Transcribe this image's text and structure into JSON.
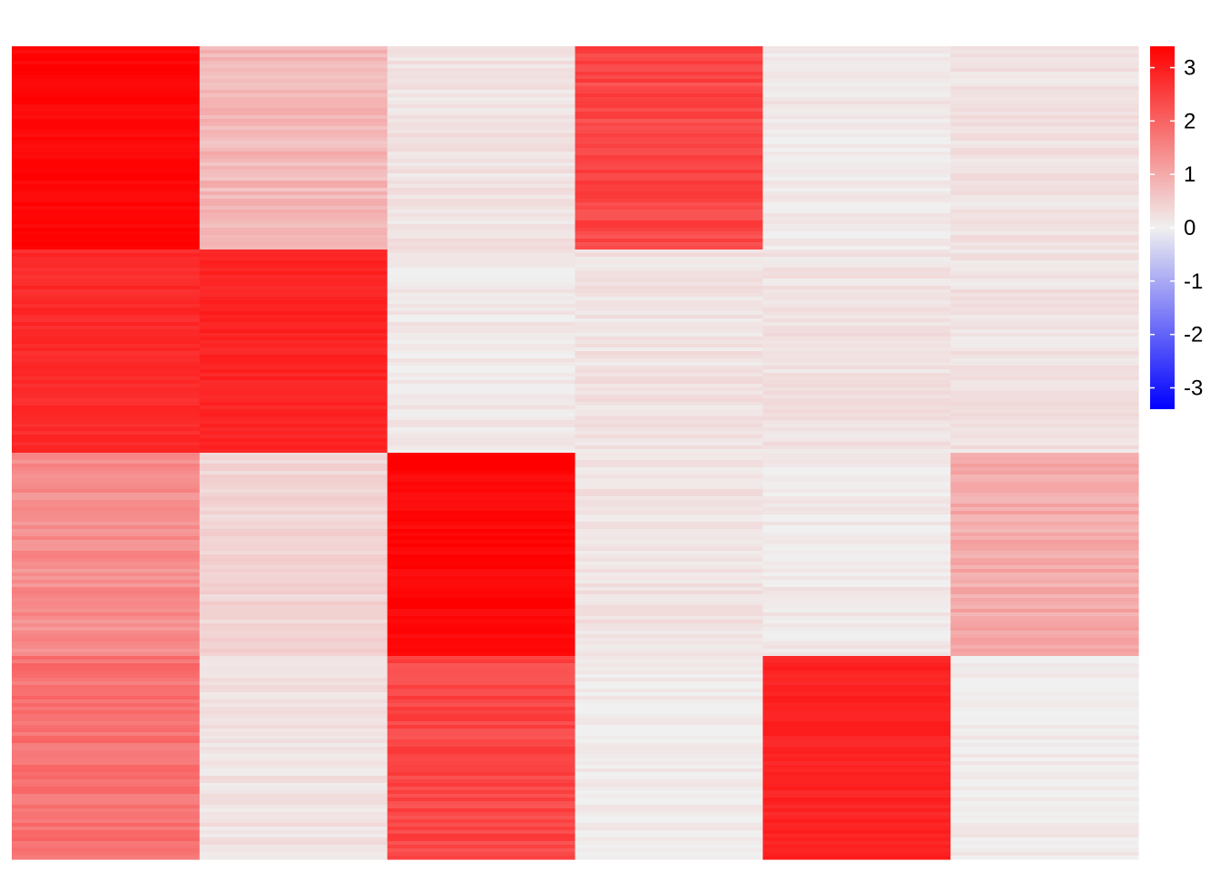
{
  "chart_data": {
    "type": "heatmap",
    "title": "",
    "xlabel": "",
    "ylabel": "",
    "grid": false,
    "legend_position": "right",
    "n_columns": 6,
    "n_row_blocks": 4,
    "rows_per_block": 56,
    "block_values": [
      [
        3.3,
        0.8,
        0.2,
        2.4,
        0.1,
        0.2
      ],
      [
        2.8,
        2.9,
        0.1,
        0.2,
        0.2,
        0.2
      ],
      [
        1.4,
        0.4,
        3.3,
        0.2,
        0.1,
        1.0
      ],
      [
        1.8,
        0.2,
        2.4,
        0.05,
        2.9,
        0.05
      ]
    ],
    "colorbar": {
      "min": -3.4,
      "max": 3.4,
      "ticks": [
        3,
        2,
        1,
        0,
        -1,
        -2,
        -3
      ],
      "tick_labels": [
        "3",
        "2",
        "1",
        "0",
        "-1",
        "-2",
        "-3"
      ],
      "colors": {
        "low": "#0000FF",
        "mid": "#F0F0F0",
        "high": "#FF0000"
      }
    }
  }
}
